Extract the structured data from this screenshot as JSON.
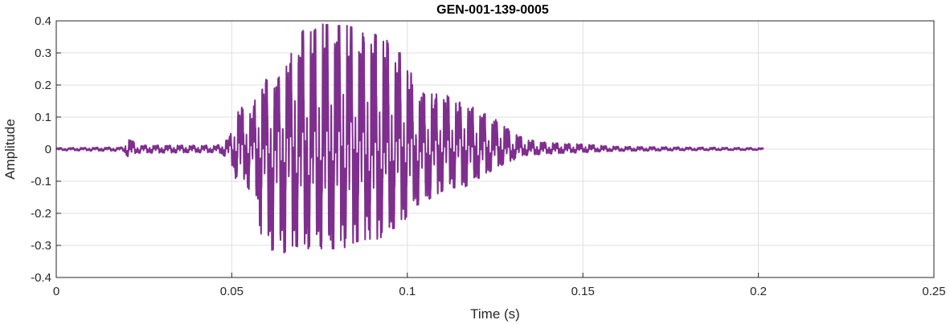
{
  "chart_data": {
    "type": "line",
    "title": "GEN-001-139-0005",
    "xlabel": "Time (s)",
    "ylabel": "Amplitude",
    "xlim": [
      0,
      0.25
    ],
    "ylim": [
      -0.4,
      0.4
    ],
    "xticks": [
      0,
      0.05,
      0.1,
      0.15,
      0.2,
      0.25
    ],
    "xtick_labels": [
      "0",
      "0.05",
      "0.1",
      "0.15",
      "0.2",
      "0.25"
    ],
    "yticks": [
      -0.4,
      -0.3,
      -0.2,
      -0.1,
      0,
      0.1,
      0.2,
      0.3,
      0.4
    ],
    "ytick_labels": [
      "-0.4",
      "-0.3",
      "-0.2",
      "-0.1",
      "0",
      "0.1",
      "0.2",
      "0.3",
      "0.4"
    ],
    "grid": true,
    "line_color": "#7e2f8e",
    "signal_end": 0.2014,
    "series": [
      {
        "envelope_points": [
          [
            0.0,
            0.004
          ],
          [
            0.019,
            0.006
          ],
          [
            0.0202,
            0.042
          ],
          [
            0.023,
            0.012
          ],
          [
            0.046,
            0.012
          ],
          [
            0.0495,
            0.04
          ],
          [
            0.0515,
            0.13
          ],
          [
            0.0535,
            0.13
          ],
          [
            0.056,
            0.12
          ],
          [
            0.058,
            0.23
          ],
          [
            0.062,
            0.2
          ],
          [
            0.065,
            0.25
          ],
          [
            0.068,
            0.34
          ],
          [
            0.072,
            0.39
          ],
          [
            0.0755,
            0.39
          ],
          [
            0.0795,
            0.385
          ],
          [
            0.083,
            0.385
          ],
          [
            0.0865,
            0.37
          ],
          [
            0.09,
            0.36
          ],
          [
            0.0935,
            0.35
          ],
          [
            0.0965,
            0.3
          ],
          [
            0.0995,
            0.3
          ],
          [
            0.102,
            0.2
          ],
          [
            0.105,
            0.17
          ],
          [
            0.108,
            0.18
          ],
          [
            0.111,
            0.17
          ],
          [
            0.114,
            0.15
          ],
          [
            0.117,
            0.14
          ],
          [
            0.1205,
            0.12
          ],
          [
            0.124,
            0.1
          ],
          [
            0.127,
            0.08
          ],
          [
            0.13,
            0.05
          ],
          [
            0.134,
            0.03
          ],
          [
            0.14,
            0.02
          ],
          [
            0.15,
            0.015
          ],
          [
            0.16,
            0.008
          ],
          [
            0.18,
            0.006
          ],
          [
            0.2014,
            0.004
          ]
        ],
        "negative_envelope_points": [
          [
            0.0,
            -0.004
          ],
          [
            0.019,
            -0.006
          ],
          [
            0.0205,
            -0.025
          ],
          [
            0.023,
            -0.012
          ],
          [
            0.046,
            -0.01
          ],
          [
            0.0495,
            -0.03
          ],
          [
            0.051,
            -0.09
          ],
          [
            0.054,
            -0.11
          ],
          [
            0.057,
            -0.16
          ],
          [
            0.0575,
            -0.24
          ],
          [
            0.058,
            -0.25
          ],
          [
            0.059,
            -0.29
          ],
          [
            0.0605,
            -0.3
          ],
          [
            0.0625,
            -0.33
          ],
          [
            0.064,
            -0.33
          ],
          [
            0.0675,
            -0.3
          ],
          [
            0.071,
            -0.31
          ],
          [
            0.0745,
            -0.31
          ],
          [
            0.078,
            -0.31
          ],
          [
            0.0815,
            -0.31
          ],
          [
            0.085,
            -0.29
          ],
          [
            0.0885,
            -0.28
          ],
          [
            0.092,
            -0.28
          ],
          [
            0.095,
            -0.25
          ],
          [
            0.0985,
            -0.24
          ],
          [
            0.101,
            -0.18
          ],
          [
            0.104,
            -0.17
          ],
          [
            0.107,
            -0.15
          ],
          [
            0.11,
            -0.13
          ],
          [
            0.113,
            -0.12
          ],
          [
            0.116,
            -0.12
          ],
          [
            0.119,
            -0.1
          ],
          [
            0.122,
            -0.08
          ],
          [
            0.125,
            -0.06
          ],
          [
            0.129,
            -0.04
          ],
          [
            0.133,
            -0.02
          ],
          [
            0.14,
            -0.015
          ],
          [
            0.15,
            -0.01
          ],
          [
            0.16,
            -0.006
          ],
          [
            0.18,
            -0.004
          ],
          [
            0.2014,
            -0.003
          ]
        ]
      }
    ]
  }
}
